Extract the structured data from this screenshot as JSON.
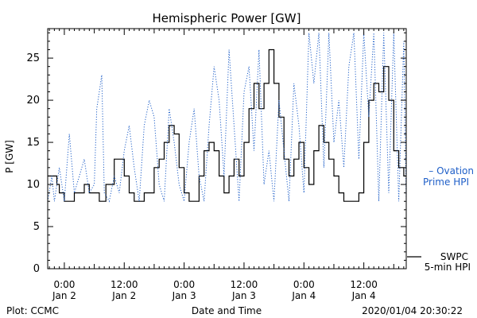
{
  "colors": {
    "background": "#ffffff",
    "axis": "#000000",
    "swpc": "#000000",
    "ovation": "#1f5fc8"
  },
  "chart_data": {
    "type": "line",
    "title": "Hemispheric Power [GW]",
    "xlabel": "Date and Time",
    "ylabel": "P [GW]",
    "ylim": [
      0,
      28.5
    ],
    "xlim": [
      "2020-01-01T20:40",
      "2020-01-04T20:30"
    ],
    "yticks": [
      0,
      5,
      10,
      15,
      20,
      25
    ],
    "xticks": [
      {
        "x": "2020-01-02T00:00",
        "time": "0:00",
        "date": "Jan 2"
      },
      {
        "x": "2020-01-02T12:00",
        "time": "12:00",
        "date": "Jan 2"
      },
      {
        "x": "2020-01-03T00:00",
        "time": "0:00",
        "date": "Jan 3"
      },
      {
        "x": "2020-01-03T12:00",
        "time": "12:00",
        "date": "Jan 3"
      },
      {
        "x": "2020-01-04T00:00",
        "time": "0:00",
        "date": "Jan 4"
      },
      {
        "x": "2020-01-04T12:00",
        "time": "12:00",
        "date": "Jan 4"
      }
    ],
    "grid": false,
    "legend_position": "right",
    "series": [
      {
        "name": "SWPC 5-min HPI",
        "legend_line1": "SWPC",
        "legend_line2": "5-min HPI",
        "style": "solid",
        "color": "#000000",
        "points": [
          [
            "2020-01-01T20:40",
            11
          ],
          [
            "2020-01-01T22:00",
            11
          ],
          [
            "2020-01-01T22:30",
            10
          ],
          [
            "2020-01-01T23:00",
            9
          ],
          [
            "2020-01-02T00:00",
            8
          ],
          [
            "2020-01-02T01:30",
            8
          ],
          [
            "2020-01-02T02:00",
            9
          ],
          [
            "2020-01-02T03:30",
            9
          ],
          [
            "2020-01-02T04:00",
            10
          ],
          [
            "2020-01-02T05:00",
            9
          ],
          [
            "2020-01-02T06:00",
            9
          ],
          [
            "2020-01-02T07:00",
            8
          ],
          [
            "2020-01-02T08:00",
            8
          ],
          [
            "2020-01-02T08:20",
            10
          ],
          [
            "2020-01-02T09:00",
            10
          ],
          [
            "2020-01-02T10:00",
            13
          ],
          [
            "2020-01-02T11:00",
            13
          ],
          [
            "2020-01-02T12:00",
            11
          ],
          [
            "2020-01-02T13:00",
            9
          ],
          [
            "2020-01-02T14:00",
            8
          ],
          [
            "2020-01-02T15:00",
            8
          ],
          [
            "2020-01-02T16:00",
            9
          ],
          [
            "2020-01-02T18:00",
            12
          ],
          [
            "2020-01-02T19:00",
            13
          ],
          [
            "2020-01-02T20:00",
            15
          ],
          [
            "2020-01-02T21:00",
            17
          ],
          [
            "2020-01-02T22:00",
            16
          ],
          [
            "2020-01-02T23:00",
            12
          ],
          [
            "2020-01-03T00:00",
            9
          ],
          [
            "2020-01-03T01:00",
            8
          ],
          [
            "2020-01-03T02:00",
            8
          ],
          [
            "2020-01-03T03:00",
            11
          ],
          [
            "2020-01-03T04:00",
            14
          ],
          [
            "2020-01-03T05:00",
            15
          ],
          [
            "2020-01-03T06:00",
            14
          ],
          [
            "2020-01-03T07:00",
            11
          ],
          [
            "2020-01-03T08:00",
            9
          ],
          [
            "2020-01-03T09:00",
            11
          ],
          [
            "2020-01-03T10:00",
            13
          ],
          [
            "2020-01-03T11:00",
            11
          ],
          [
            "2020-01-03T12:00",
            15
          ],
          [
            "2020-01-03T13:00",
            19
          ],
          [
            "2020-01-03T14:00",
            22
          ],
          [
            "2020-01-03T15:00",
            19
          ],
          [
            "2020-01-03T16:00",
            22
          ],
          [
            "2020-01-03T17:00",
            26
          ],
          [
            "2020-01-03T18:00",
            22
          ],
          [
            "2020-01-03T19:00",
            18
          ],
          [
            "2020-01-03T20:00",
            13
          ],
          [
            "2020-01-03T21:00",
            11
          ],
          [
            "2020-01-03T22:00",
            13
          ],
          [
            "2020-01-03T23:00",
            15
          ],
          [
            "2020-01-04T00:00",
            12
          ],
          [
            "2020-01-04T01:00",
            10
          ],
          [
            "2020-01-04T02:00",
            14
          ],
          [
            "2020-01-04T03:00",
            17
          ],
          [
            "2020-01-04T04:00",
            15
          ],
          [
            "2020-01-04T05:00",
            13
          ],
          [
            "2020-01-04T06:00",
            11
          ],
          [
            "2020-01-04T07:00",
            9
          ],
          [
            "2020-01-04T08:00",
            8
          ],
          [
            "2020-01-04T09:00",
            8
          ],
          [
            "2020-01-04T10:00",
            8
          ],
          [
            "2020-01-04T11:00",
            9
          ],
          [
            "2020-01-04T12:00",
            15
          ],
          [
            "2020-01-04T13:00",
            20
          ],
          [
            "2020-01-04T14:00",
            22
          ],
          [
            "2020-01-04T15:00",
            21
          ],
          [
            "2020-01-04T16:00",
            24
          ],
          [
            "2020-01-04T17:00",
            20
          ],
          [
            "2020-01-04T18:00",
            14
          ],
          [
            "2020-01-04T19:00",
            12
          ],
          [
            "2020-01-04T20:00",
            11
          ],
          [
            "2020-01-04T20:30",
            11
          ]
        ]
      },
      {
        "name": "Ovation Prime HPI",
        "legend_line1": "– Ovation",
        "legend_line2": "Prime HPI",
        "style": "dotted",
        "color": "#1f5fc8",
        "points": [
          [
            "2020-01-01T20:40",
            8
          ],
          [
            "2020-01-01T21:30",
            11
          ],
          [
            "2020-01-01T22:00",
            8
          ],
          [
            "2020-01-01T23:00",
            12
          ],
          [
            "2020-01-02T00:00",
            8
          ],
          [
            "2020-01-02T01:00",
            16
          ],
          [
            "2020-01-02T02:00",
            9
          ],
          [
            "2020-01-02T03:00",
            11
          ],
          [
            "2020-01-02T04:00",
            13
          ],
          [
            "2020-01-02T05:00",
            9
          ],
          [
            "2020-01-02T06:00",
            10
          ],
          [
            "2020-01-02T06:30",
            19
          ],
          [
            "2020-01-02T07:00",
            21
          ],
          [
            "2020-01-02T07:30",
            23
          ],
          [
            "2020-01-02T08:00",
            9
          ],
          [
            "2020-01-02T09:00",
            8
          ],
          [
            "2020-01-02T10:00",
            11
          ],
          [
            "2020-01-02T11:00",
            9
          ],
          [
            "2020-01-02T12:00",
            14
          ],
          [
            "2020-01-02T13:00",
            17
          ],
          [
            "2020-01-02T14:00",
            12
          ],
          [
            "2020-01-02T15:00",
            8
          ],
          [
            "2020-01-02T16:00",
            17
          ],
          [
            "2020-01-02T17:00",
            20
          ],
          [
            "2020-01-02T18:00",
            18
          ],
          [
            "2020-01-02T19:00",
            10
          ],
          [
            "2020-01-02T20:00",
            8
          ],
          [
            "2020-01-02T21:00",
            19
          ],
          [
            "2020-01-02T22:00",
            15
          ],
          [
            "2020-01-02T23:00",
            10
          ],
          [
            "2020-01-03T00:00",
            8
          ],
          [
            "2020-01-03T01:00",
            15
          ],
          [
            "2020-01-03T02:00",
            19
          ],
          [
            "2020-01-03T03:00",
            11
          ],
          [
            "2020-01-03T04:00",
            8
          ],
          [
            "2020-01-03T05:00",
            17
          ],
          [
            "2020-01-03T06:00",
            24
          ],
          [
            "2020-01-03T07:00",
            20
          ],
          [
            "2020-01-03T08:00",
            11
          ],
          [
            "2020-01-03T09:00",
            26
          ],
          [
            "2020-01-03T10:00",
            17
          ],
          [
            "2020-01-03T11:00",
            8
          ],
          [
            "2020-01-03T12:00",
            21
          ],
          [
            "2020-01-03T13:00",
            24
          ],
          [
            "2020-01-03T14:00",
            14
          ],
          [
            "2020-01-03T15:00",
            26
          ],
          [
            "2020-01-03T16:00",
            10
          ],
          [
            "2020-01-03T17:00",
            14
          ],
          [
            "2020-01-03T18:00",
            8
          ],
          [
            "2020-01-03T19:00",
            20
          ],
          [
            "2020-01-03T20:00",
            14
          ],
          [
            "2020-01-03T21:00",
            8
          ],
          [
            "2020-01-03T22:00",
            22
          ],
          [
            "2020-01-03T23:00",
            17
          ],
          [
            "2020-01-04T00:00",
            9
          ],
          [
            "2020-01-04T01:00",
            28
          ],
          [
            "2020-01-04T02:00",
            22
          ],
          [
            "2020-01-04T03:00",
            28
          ],
          [
            "2020-01-04T04:00",
            12
          ],
          [
            "2020-01-04T05:00",
            28
          ],
          [
            "2020-01-04T06:00",
            15
          ],
          [
            "2020-01-04T07:00",
            20
          ],
          [
            "2020-01-04T08:00",
            12
          ],
          [
            "2020-01-04T09:00",
            24
          ],
          [
            "2020-01-04T10:00",
            28
          ],
          [
            "2020-01-04T11:00",
            13
          ],
          [
            "2020-01-04T12:00",
            28
          ],
          [
            "2020-01-04T13:00",
            18
          ],
          [
            "2020-01-04T14:00",
            28
          ],
          [
            "2020-01-04T15:00",
            8
          ],
          [
            "2020-01-04T16:00",
            28
          ],
          [
            "2020-01-04T17:00",
            9
          ],
          [
            "2020-01-04T18:00",
            28
          ],
          [
            "2020-01-04T19:00",
            8
          ],
          [
            "2020-01-04T20:00",
            27
          ],
          [
            "2020-01-04T20:30",
            8
          ]
        ]
      }
    ]
  },
  "footer": {
    "plot_credit": "Plot: CCMC",
    "x_caption": "Date and Time",
    "timestamp": "2020/01/04 20:30:22"
  }
}
